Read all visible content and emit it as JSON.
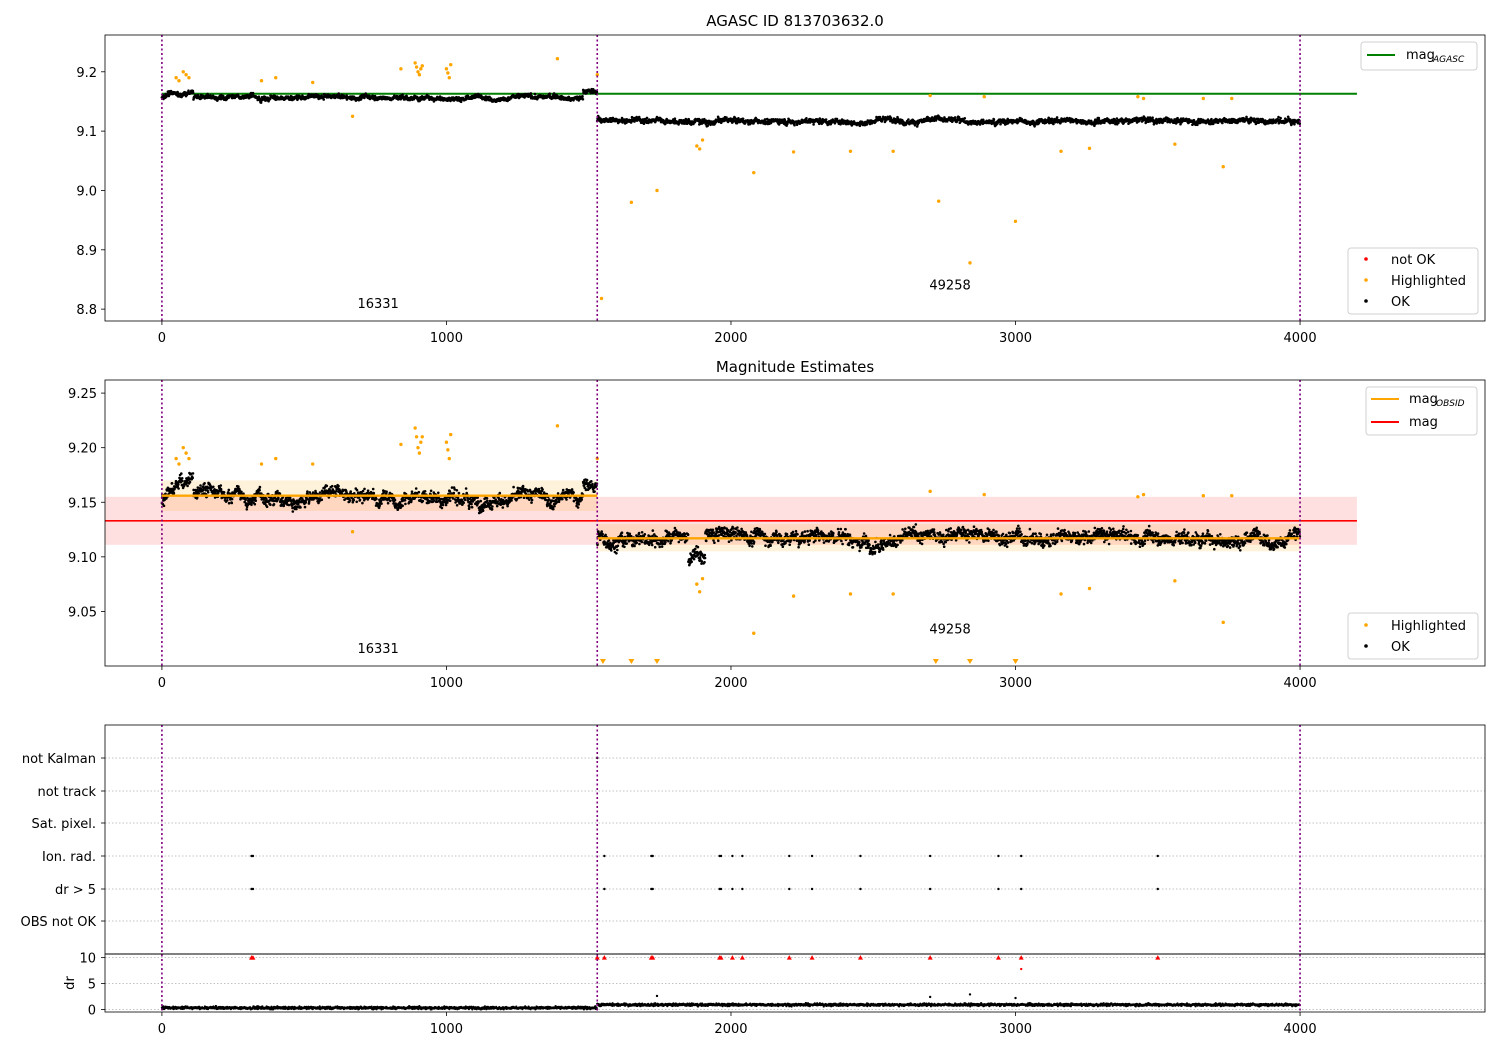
{
  "chart_data": [
    {
      "type": "scatter",
      "title": "AGASC ID 813703632.0",
      "xlabel": "",
      "ylabel": "",
      "xlim": [
        -200,
        4650
      ],
      "ylim": [
        8.78,
        9.262
      ],
      "yticks": [
        8.8,
        8.9,
        9.0,
        9.1,
        9.2
      ],
      "ytick_labels": [
        "8.8",
        "8.9",
        "9.0",
        "9.1",
        "9.2"
      ],
      "xticks": [
        0,
        1000,
        2000,
        3000,
        4000
      ],
      "xtick_labels": [
        "0",
        "1000",
        "2000",
        "3000",
        "4000"
      ],
      "grid": false,
      "legends": [
        {
          "placement": "top-right",
          "entries": [
            {
              "label": "mag",
              "subscript": "AGASC",
              "color": "#008000",
              "kind": "line"
            }
          ]
        },
        {
          "placement": "bottom-right",
          "entries": [
            {
              "label": "not OK",
              "color": "#ff0000",
              "kind": "marker"
            },
            {
              "label": "Highlighted",
              "color": "#ffa500",
              "kind": "marker"
            },
            {
              "label": "OK",
              "color": "#000000",
              "kind": "marker"
            }
          ]
        }
      ],
      "vlines": [
        0,
        1530,
        4000
      ],
      "vline_color": "#800080",
      "hlines": [
        {
          "y": 9.163,
          "x_range": [
            0,
            4200
          ],
          "color": "#008000"
        }
      ],
      "annotations": [
        {
          "text": "16331",
          "x": 760,
          "y": 8.802
        },
        {
          "text": "49258",
          "x": 2770,
          "y": 8.833
        }
      ],
      "segments": [
        {
          "obsid": "16331",
          "x_range": [
            0,
            1530
          ],
          "ok_level": 9.157,
          "ok_spread": 0.006
        },
        {
          "obsid": "49258",
          "x_range": [
            1530,
            4000
          ],
          "ok_level": 9.118,
          "ok_spread": 0.007
        }
      ],
      "series": [
        {
          "name": "Highlighted",
          "color": "#ffa500",
          "points": [
            [
              50,
              9.19
            ],
            [
              60,
              9.185
            ],
            [
              75,
              9.2
            ],
            [
              85,
              9.195
            ],
            [
              95,
              9.19
            ],
            [
              350,
              9.185
            ],
            [
              400,
              9.19
            ],
            [
              530,
              9.182
            ],
            [
              670,
              9.125
            ],
            [
              840,
              9.205
            ],
            [
              890,
              9.215
            ],
            [
              895,
              9.208
            ],
            [
              900,
              9.2
            ],
            [
              905,
              9.195
            ],
            [
              910,
              9.205
            ],
            [
              915,
              9.21
            ],
            [
              1000,
              9.205
            ],
            [
              1005,
              9.198
            ],
            [
              1010,
              9.19
            ],
            [
              1015,
              9.212
            ],
            [
              1390,
              9.222
            ],
            [
              1530,
              9.195
            ],
            [
              1545,
              8.818
            ],
            [
              1650,
              8.98
            ],
            [
              1740,
              9.0
            ],
            [
              1880,
              9.075
            ],
            [
              1890,
              9.07
            ],
            [
              1900,
              9.085
            ],
            [
              2080,
              9.03
            ],
            [
              2220,
              9.065
            ],
            [
              2420,
              9.066
            ],
            [
              2570,
              9.066
            ],
            [
              2700,
              9.16
            ],
            [
              2730,
              8.982
            ],
            [
              2840,
              8.878
            ],
            [
              2890,
              9.158
            ],
            [
              3000,
              8.948
            ],
            [
              3160,
              9.066
            ],
            [
              3260,
              9.071
            ],
            [
              3430,
              9.158
            ],
            [
              3450,
              9.155
            ],
            [
              3560,
              9.078
            ],
            [
              3660,
              9.155
            ],
            [
              3730,
              9.04
            ],
            [
              3760,
              9.155
            ]
          ]
        }
      ]
    },
    {
      "type": "scatter",
      "title": "Magnitude Estimates",
      "xlabel": "",
      "ylabel": "",
      "xlim": [
        -200,
        4650
      ],
      "ylim": [
        9.0,
        9.262
      ],
      "yticks": [
        9.05,
        9.1,
        9.15,
        9.2,
        9.25
      ],
      "ytick_labels": [
        "9.05",
        "9.10",
        "9.15",
        "9.20",
        "9.25"
      ],
      "xticks": [
        0,
        1000,
        2000,
        3000,
        4000
      ],
      "xtick_labels": [
        "0",
        "1000",
        "2000",
        "3000",
        "4000"
      ],
      "grid": false,
      "legends": [
        {
          "placement": "top-right",
          "entries": [
            {
              "label": "mag",
              "subscript": "OBSID",
              "color": "#ffa500",
              "kind": "line"
            },
            {
              "label": "mag",
              "subscript": "",
              "color": "#ff0000",
              "kind": "line"
            }
          ]
        },
        {
          "placement": "bottom-right",
          "entries": [
            {
              "label": "Highlighted",
              "color": "#ffa500",
              "kind": "marker"
            },
            {
              "label": "OK",
              "color": "#000000",
              "kind": "marker"
            }
          ]
        }
      ],
      "vlines": [
        0,
        1530,
        4000
      ],
      "vline_color": "#800080",
      "mag_line": {
        "y": 9.133,
        "band": [
          9.111,
          9.155
        ],
        "x_range": [
          -200,
          4200
        ],
        "color": "#ff0000"
      },
      "obsid_lines": [
        {
          "x_range": [
            0,
            1530
          ],
          "y": 9.156,
          "band": [
            9.142,
            9.17
          ]
        },
        {
          "x_range": [
            1530,
            4000
          ],
          "y": 9.117,
          "band": [
            9.105,
            9.13
          ]
        }
      ],
      "annotations": [
        {
          "text": "16331",
          "x": 760,
          "y": 9.012
        },
        {
          "text": "49258",
          "x": 2770,
          "y": 9.03
        }
      ],
      "segments": [
        {
          "obsid": "16331",
          "x_range": [
            0,
            1530
          ],
          "ok_level": 9.155,
          "ok_spread": 0.009
        },
        {
          "obsid": "49258",
          "x_range": [
            1530,
            4000
          ],
          "ok_level": 9.118,
          "ok_spread": 0.01
        }
      ],
      "off_scale_markers": [
        1550,
        1650,
        1740,
        2720,
        2840,
        3000
      ],
      "series": [
        {
          "name": "Highlighted",
          "color": "#ffa500",
          "points": [
            [
              50,
              9.19
            ],
            [
              60,
              9.185
            ],
            [
              75,
              9.2
            ],
            [
              85,
              9.195
            ],
            [
              95,
              9.19
            ],
            [
              350,
              9.185
            ],
            [
              400,
              9.19
            ],
            [
              530,
              9.185
            ],
            [
              670,
              9.123
            ],
            [
              840,
              9.203
            ],
            [
              890,
              9.218
            ],
            [
              895,
              9.21
            ],
            [
              900,
              9.2
            ],
            [
              905,
              9.195
            ],
            [
              910,
              9.205
            ],
            [
              915,
              9.21
            ],
            [
              1000,
              9.205
            ],
            [
              1005,
              9.198
            ],
            [
              1010,
              9.19
            ],
            [
              1015,
              9.212
            ],
            [
              1390,
              9.22
            ],
            [
              1530,
              9.19
            ],
            [
              1880,
              9.075
            ],
            [
              1890,
              9.068
            ],
            [
              1900,
              9.08
            ],
            [
              2080,
              9.03
            ],
            [
              2220,
              9.064
            ],
            [
              2420,
              9.066
            ],
            [
              2570,
              9.066
            ],
            [
              2700,
              9.16
            ],
            [
              2890,
              9.157
            ],
            [
              3160,
              9.066
            ],
            [
              3260,
              9.071
            ],
            [
              3430,
              9.155
            ],
            [
              3450,
              9.157
            ],
            [
              3560,
              9.078
            ],
            [
              3660,
              9.156
            ],
            [
              3730,
              9.04
            ],
            [
              3760,
              9.156
            ]
          ]
        }
      ]
    },
    {
      "type": "scatter",
      "title": "",
      "xlim": [
        -200,
        4650
      ],
      "flags_ylabels": [
        "not Kalman",
        "not track",
        "Sat. pixel.",
        "Ion. rad.",
        "dr > 5",
        "OBS not OK"
      ],
      "flag_events": {
        "not Kalman": [
          1530
        ],
        "not track": [],
        "Sat. pixel.": [],
        "Ion. rad.": [
          315,
          320,
          1555,
          1720,
          1725,
          1960,
          1965,
          2005,
          2040,
          2205,
          2285,
          2455,
          2700,
          2940,
          3020,
          3500
        ],
        "dr > 5": [
          315,
          320,
          1555,
          1720,
          1725,
          1960,
          1965,
          2005,
          2040,
          2205,
          2285,
          2455,
          2700,
          2940,
          3020,
          3500
        ],
        "OBS not OK": []
      },
      "dr": {
        "ylabel": "dr",
        "ylim": [
          -0.5,
          10.7
        ],
        "yticks": [
          0,
          5,
          10
        ],
        "ytick_labels": [
          "0",
          "5",
          "10"
        ],
        "baseline": [
          {
            "x_range": [
              0,
              1530
            ],
            "level": 0.3
          },
          {
            "x_range": [
              1530,
              4000
            ],
            "level": 0.9
          }
        ],
        "clipped_points": [
          315,
          320,
          1530,
          1555,
          1720,
          1725,
          1960,
          1965,
          2005,
          2040,
          2205,
          2285,
          2455,
          2700,
          2940,
          3020,
          3500
        ],
        "extra_points": [
          [
            3020,
            7.8
          ],
          [
            1740,
            2.6
          ],
          [
            2840,
            2.9
          ],
          [
            2700,
            2.4
          ],
          [
            3000,
            2.2
          ]
        ],
        "clip_color": "#ff0000"
      },
      "xticks": [
        0,
        1000,
        2000,
        3000,
        4000
      ],
      "xtick_labels": [
        "0",
        "1000",
        "2000",
        "3000",
        "4000"
      ],
      "vlines": [
        0,
        1530,
        4000
      ],
      "vline_color": "#800080"
    }
  ]
}
